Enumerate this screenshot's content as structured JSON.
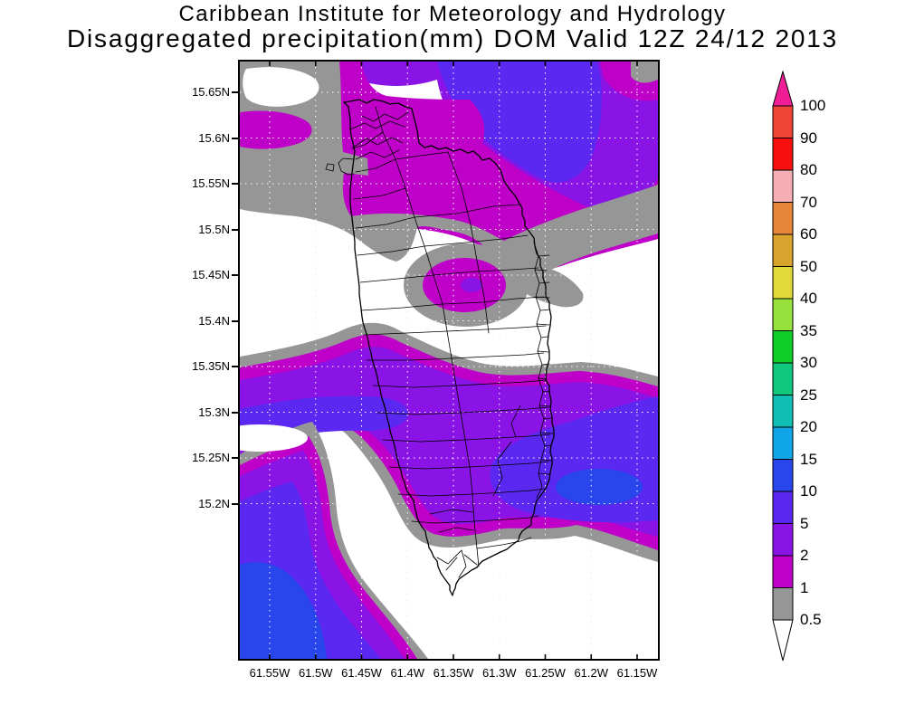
{
  "title": {
    "line1": "Caribbean Institute for Meteorology and Hydrology",
    "line2": "Disaggregated precipitation(mm) DOM Valid 12Z 24/12 2013"
  },
  "axes": {
    "lat_labels": [
      "15.65N",
      "15.6N",
      "15.55N",
      "15.5N",
      "15.45N",
      "15.4N",
      "15.35N",
      "15.3N",
      "15.25N",
      "15.2N"
    ],
    "lon_labels": [
      "61.55W",
      "61.5W",
      "61.45W",
      "61.4W",
      "61.35W",
      "61.3W",
      "61.25W",
      "61.2W",
      "61.15W"
    ]
  },
  "colorbar": {
    "tick_labels": [
      "100",
      "90",
      "80",
      "70",
      "60",
      "50",
      "40",
      "35",
      "30",
      "25",
      "20",
      "15",
      "10",
      "5",
      "2",
      "1",
      "0.5"
    ],
    "segments_top_to_bottom": [
      {
        "range": "90-100",
        "color": "#f04438"
      },
      {
        "range": "80-90",
        "color": "#fa0f0f"
      },
      {
        "range": "70-80",
        "color": "#f5afb4"
      },
      {
        "range": "60-70",
        "color": "#e6873c"
      },
      {
        "range": "50-60",
        "color": "#d7a52d"
      },
      {
        "range": "40-50",
        "color": "#e1d93c"
      },
      {
        "range": "35-40",
        "color": "#96e13c"
      },
      {
        "range": "30-35",
        "color": "#0fcd28"
      },
      {
        "range": "25-30",
        "color": "#0fc87d"
      },
      {
        "range": "20-25",
        "color": "#0fbeb4"
      },
      {
        "range": "15-20",
        "color": "#0fa5e6"
      },
      {
        "range": "10-15",
        "color": "#2846eb"
      },
      {
        "range": "5-10",
        "color": "#5a28f0"
      },
      {
        "range": "2-5",
        "color": "#8a14e6"
      },
      {
        "range": "1-2",
        "color": "#bf00c8"
      },
      {
        "range": "0.5-1",
        "color": "#969696"
      }
    ],
    "over_arrow_color": "#f01e96",
    "under_arrow_color": "#ffffff"
  },
  "chart_data": {
    "type": "heatmap",
    "title": "Disaggregated precipitation(mm) DOM Valid 12Z 24/12 2013",
    "subtitle": "Caribbean Institute for Meteorology and Hydrology",
    "units": "mm",
    "lat_tick_range": [
      "15.2N",
      "15.65N"
    ],
    "lon_tick_range": [
      "61.55W",
      "61.15W"
    ],
    "contour_levels": [
      0.5,
      1,
      2,
      5,
      10,
      15,
      20,
      25,
      30,
      35,
      40,
      50,
      60,
      70,
      80,
      90,
      100
    ],
    "depicted_value_range": "0.5 to 15 mm (gray / magenta / purple / blue bands only)",
    "features": [
      "northern rain band 1-10 mm with 5-10 mm core northeast of island",
      "small 1-5 mm cell ringed by 0.5-1 mm over island center",
      "southern rain band 1-10 mm crossing south-central island",
      "southwest offshore maximum 10-15 mm",
      "southeast coastal maximum 5-10 mm"
    ]
  }
}
